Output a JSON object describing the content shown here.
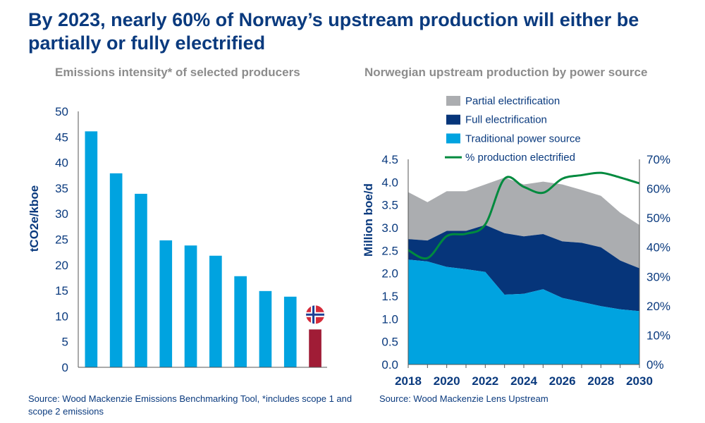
{
  "title": "By 2023, nearly 60% of Norway’s upstream production will either be partially or fully electrified",
  "colors": {
    "title": "#0a3a7e",
    "bar": "#00a3e0",
    "norway_bar": "#a01c36",
    "traditional": "#00a3e0",
    "full": "#06357a",
    "partial": "#abadb0",
    "line": "#008a3e",
    "subtitle": "#8c8c8c"
  },
  "chart_data": [
    {
      "type": "bar",
      "title": "Emissions intensity* of selected producers",
      "ylabel": "tCO2e/kboe",
      "ylim": [
        0,
        50
      ],
      "yticks": [
        0,
        5,
        10,
        15,
        20,
        25,
        30,
        35,
        40,
        45,
        50
      ],
      "values": [
        46.1,
        37.9,
        33.9,
        24.8,
        23.8,
        21.8,
        17.8,
        14.9,
        13.8,
        7.4
      ],
      "highlight": {
        "index": 9,
        "marker": "norway-flag-icon"
      },
      "grid": false,
      "source": "Source: Wood Mackenzie Emissions Benchmarking Tool, *includes scope 1 and scope 2 emissions"
    },
    {
      "type": "area",
      "stacked": true,
      "title": "Norwegian upstream production by power source",
      "ylabel": "Million boe/d",
      "ylim": [
        0,
        4.5
      ],
      "yticks": [
        "0.0",
        "0.5",
        "1.0",
        "1.5",
        "2.0",
        "2.5",
        "3.0",
        "3.5",
        "4.0",
        "4.5"
      ],
      "y2lim": [
        0,
        70
      ],
      "y2ticks": [
        "0%",
        "10%",
        "20%",
        "30%",
        "40%",
        "50%",
        "60%",
        "70%"
      ],
      "x": [
        2018,
        2019,
        2020,
        2021,
        2022,
        2023,
        2024,
        2025,
        2026,
        2027,
        2028,
        2029,
        2030
      ],
      "xticks": [
        "2018",
        "2020",
        "2022",
        "2024",
        "2026",
        "2028",
        "2030"
      ],
      "series": [
        {
          "name": "Traditional power source",
          "values": [
            2.3,
            2.26,
            2.14,
            2.09,
            2.03,
            1.53,
            1.55,
            1.65,
            1.46,
            1.37,
            1.28,
            1.21,
            1.17
          ]
        },
        {
          "name": "Full electrification",
          "values": [
            0.45,
            0.46,
            0.79,
            0.84,
            1.03,
            1.35,
            1.26,
            1.21,
            1.24,
            1.3,
            1.29,
            1.07,
            0.94
          ]
        },
        {
          "name": "Partial electrification",
          "values": [
            1.03,
            0.84,
            0.87,
            0.87,
            0.89,
            1.22,
            1.14,
            1.15,
            1.25,
            1.16,
            1.13,
            1.05,
            0.95
          ]
        },
        {
          "name": "% production electrified",
          "type": "line",
          "axis": "right",
          "values": [
            39.0,
            36.3,
            43.8,
            44.6,
            47.8,
            63.4,
            60.6,
            58.6,
            63.4,
            64.6,
            65.4,
            63.8,
            61.8
          ]
        }
      ],
      "legend": [
        "Partial electrification",
        "Full electrification",
        "Traditional power source",
        "% production electrified"
      ],
      "legend_position": "top",
      "grid": false,
      "source": "Source: Wood Mackenzie Lens Upstream"
    }
  ]
}
